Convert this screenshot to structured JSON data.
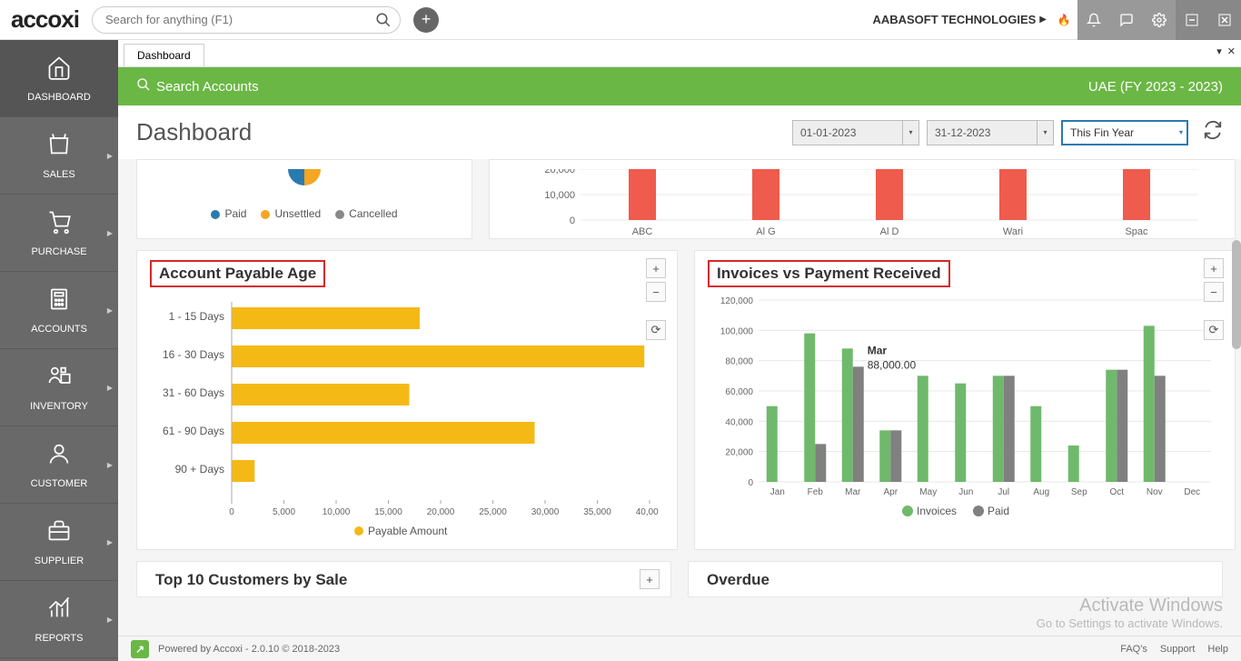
{
  "topbar": {
    "logo": "accoxi",
    "search_placeholder": "Search for anything (F1)",
    "company": "AABASOFT TECHNOLOGIES"
  },
  "sidebar": {
    "items": [
      {
        "label": "DASHBOARD",
        "icon": "home"
      },
      {
        "label": "SALES",
        "icon": "bag"
      },
      {
        "label": "PURCHASE",
        "icon": "cart"
      },
      {
        "label": "ACCOUNTS",
        "icon": "calc"
      },
      {
        "label": "INVENTORY",
        "icon": "box"
      },
      {
        "label": "CUSTOMER",
        "icon": "user"
      },
      {
        "label": "SUPPLIER",
        "icon": "brief"
      },
      {
        "label": "REPORTS",
        "icon": "chart"
      }
    ]
  },
  "tab": {
    "label": "Dashboard"
  },
  "greenbar": {
    "search_label": "Search Accounts",
    "fy_label": "UAE (FY 2023 - 2023)"
  },
  "header": {
    "title": "Dashboard",
    "date_from": "01-01-2023",
    "date_to": "31-12-2023",
    "period": "This Fin Year"
  },
  "top_partial": {
    "pie_legend": {
      "paid": "Paid",
      "unsettled": "Unsettled",
      "cancelled": "Cancelled"
    },
    "bar": {
      "type": "bar",
      "y_ticks": [
        0,
        10000,
        20000
      ],
      "y_labels": [
        "0",
        "10,000",
        "20,000"
      ],
      "categories": [
        "ABC",
        "Al G",
        "Al D",
        "Wari",
        "Spac"
      ],
      "values": [
        20000,
        20000,
        20000,
        20000,
        20000
      ],
      "bar_color": "#ef5b4c",
      "axis_color": "#888",
      "grid_color": "#e8e8e8",
      "label_fontsize": 11,
      "label_color": "#666"
    }
  },
  "payable_age": {
    "title": "Account Payable Age",
    "type": "horizontal-bar",
    "categories": [
      "1 - 15 Days",
      "16 - 30 Days",
      "31 - 60 Days",
      "61 - 90 Days",
      "90 + Days"
    ],
    "values": [
      18000,
      39500,
      17000,
      29000,
      2200
    ],
    "bar_color": "#f5b915",
    "x_ticks": [
      0,
      5000,
      10000,
      15000,
      20000,
      25000,
      30000,
      35000,
      40000
    ],
    "x_labels": [
      "0",
      "5,000",
      "10,000",
      "15,000",
      "20,000",
      "25,000",
      "30,000",
      "35,000",
      "40,000"
    ],
    "xlim": [
      0,
      40000
    ],
    "legend": "Payable Amount",
    "label_fontsize": 11,
    "label_color": "#555",
    "grid_color": "#e8e8e8"
  },
  "invoices_vs_paid": {
    "title": "Invoices vs Payment Received",
    "type": "grouped-bar",
    "categories": [
      "Jan",
      "Feb",
      "Mar",
      "Apr",
      "May",
      "Jun",
      "Jul",
      "Aug",
      "Sep",
      "Oct",
      "Nov",
      "Dec"
    ],
    "series": [
      {
        "name": "Invoices",
        "color": "#6fb96c",
        "values": [
          50000,
          98000,
          88000,
          34000,
          70000,
          65000,
          70000,
          50000,
          24000,
          74000,
          103000,
          0
        ]
      },
      {
        "name": "Paid",
        "color": "#808080",
        "values": [
          0,
          25000,
          76000,
          34000,
          0,
          0,
          70000,
          0,
          0,
          74000,
          70000,
          0
        ]
      }
    ],
    "y_ticks": [
      0,
      20000,
      40000,
      60000,
      80000,
      100000,
      120000
    ],
    "y_labels": [
      "0",
      "20,000",
      "40,000",
      "60,000",
      "80,000",
      "100,000",
      "120,000"
    ],
    "ylim": [
      0,
      120000
    ],
    "tooltip": {
      "month": "Mar",
      "value": "88,000.00"
    },
    "label_fontsize": 11,
    "label_color": "#555",
    "grid_color": "#e8e8e8"
  },
  "bottom_left": {
    "title": "Top 10 Customers by Sale"
  },
  "bottom_right": {
    "title": "Overdue"
  },
  "status": {
    "powered": "Powered by Accoxi - 2.0.10 © 2018-2023",
    "links": [
      "FAQ's",
      "Support",
      "Help"
    ]
  },
  "watermark": {
    "l1": "Activate Windows",
    "l2": "Go to Settings to activate Windows."
  }
}
